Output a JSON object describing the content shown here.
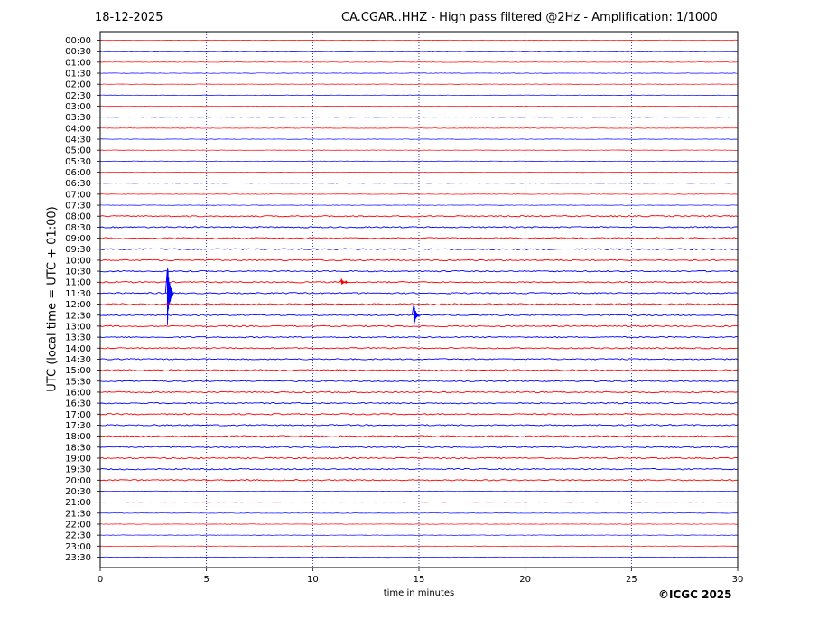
{
  "date": "18-12-2025",
  "title": "CA.CGAR..HHZ - High pass filtered @2Hz - Amplification: 1/1000",
  "copyright": "©ICGC 2025",
  "colors": {
    "red_trace": "#ff0000",
    "blue_trace": "#0000ff",
    "grid": "#000080",
    "axis": "#000000"
  },
  "chart_data": {
    "type": "line",
    "title": "CA.CGAR..HHZ - High pass filtered @2Hz - Amplification: 1/1000",
    "xlabel": "time in minutes",
    "ylabel": "UTC (local time = UTC + 01:00)",
    "xlim": [
      0,
      30
    ],
    "x_ticks": [
      0,
      5,
      10,
      15,
      20,
      25,
      30
    ],
    "vertical_grid_minutes": [
      5,
      10,
      15,
      20,
      25
    ],
    "grid": "dotted vertical",
    "rows": [
      "00:00",
      "00:30",
      "01:00",
      "01:30",
      "02:00",
      "02:30",
      "03:00",
      "03:30",
      "04:00",
      "04:30",
      "05:00",
      "05:30",
      "06:00",
      "06:30",
      "07:00",
      "07:30",
      "08:00",
      "08:30",
      "09:00",
      "09:30",
      "10:00",
      "10:30",
      "11:00",
      "11:30",
      "12:00",
      "12:30",
      "13:00",
      "13:30",
      "14:00",
      "14:30",
      "15:00",
      "15:30",
      "16:00",
      "16:30",
      "17:00",
      "17:30",
      "18:00",
      "18:30",
      "19:00",
      "19:30",
      "20:00",
      "20:30",
      "21:00",
      "21:30",
      "22:00",
      "22:30",
      "23:00",
      "23:30"
    ],
    "row_colors": "alternating red (even rows) and blue (odd rows)",
    "events": [
      {
        "row": "11:30",
        "minute": 3.2,
        "amplitude_rows": 3.5,
        "color": "blue"
      },
      {
        "row": "11:00",
        "minute": 11.4,
        "amplitude_rows": 0.3,
        "color": "red"
      },
      {
        "row": "12:30",
        "minute": 14.8,
        "amplitude_rows": 1.1,
        "color": "blue"
      }
    ]
  }
}
